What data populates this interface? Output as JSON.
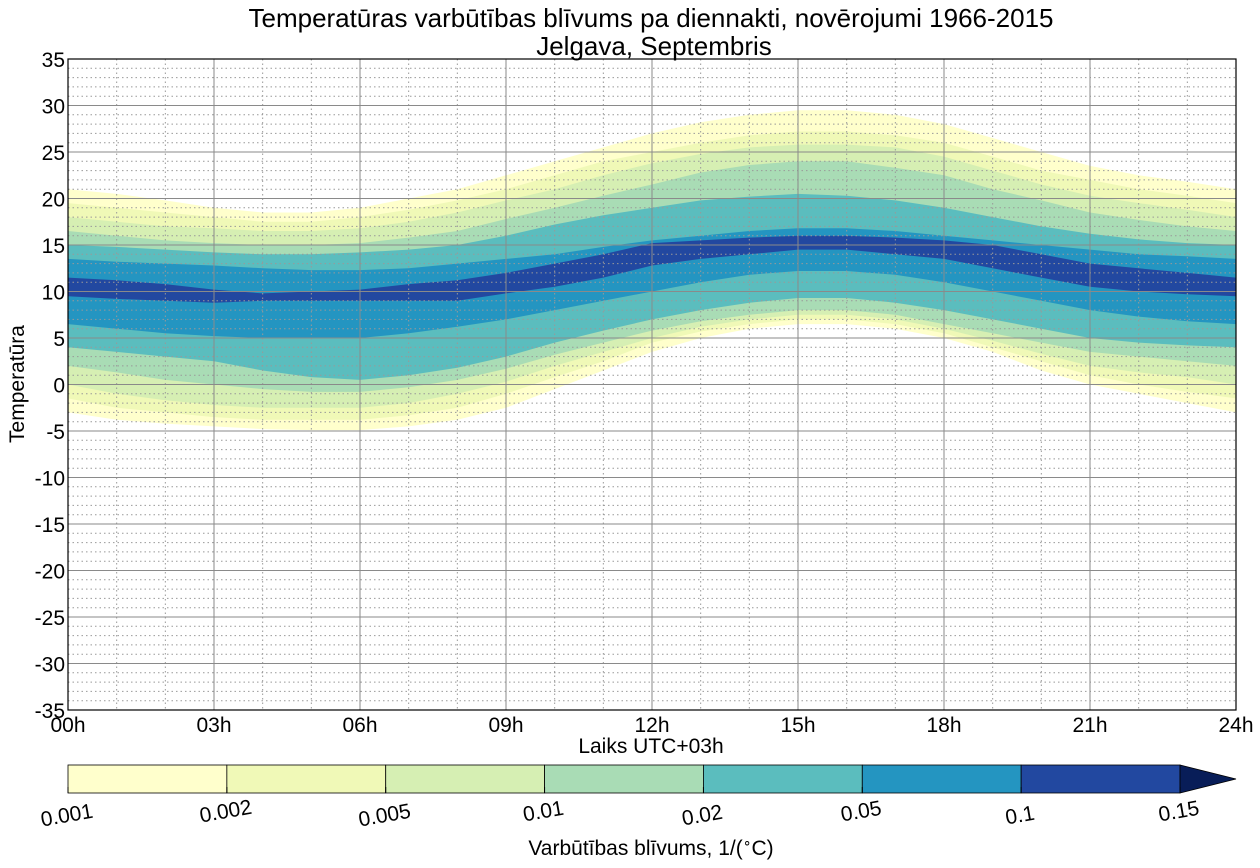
{
  "chart_data": {
    "type": "contour",
    "title": "Temperatūras varbūtības blīvums pa diennakti, novērojumi 1966-2015",
    "subtitle": "Jelgava, Septembris",
    "xlabel": "Laiks UTC+03h",
    "ylabel": "Temperatūra",
    "xlim": [
      0,
      24
    ],
    "ylim": [
      -35,
      35
    ],
    "x_ticks": [
      0,
      3,
      6,
      9,
      12,
      15,
      18,
      21,
      24
    ],
    "x_tick_labels": [
      "00h",
      "03h",
      "06h",
      "09h",
      "12h",
      "15h",
      "18h",
      "21h",
      "24h"
    ],
    "y_ticks": [
      -35,
      -30,
      -25,
      -20,
      -15,
      -10,
      -5,
      0,
      5,
      10,
      15,
      20,
      25,
      30,
      35
    ],
    "y_tick_labels": [
      "-35",
      "-30",
      "-25",
      "-20",
      "-15",
      "-10",
      "-5",
      "0",
      "5",
      "10",
      "15",
      "20",
      "25",
      "30",
      "35"
    ],
    "grid": "major solid, minor dotted",
    "colorbar": {
      "label": "Varbūtības blīvums, 1/($^\\circ$C)",
      "levels": [
        0.001,
        0.002,
        0.005,
        0.01,
        0.02,
        0.05,
        0.1,
        0.15
      ],
      "tick_labels": [
        "0.001",
        "0.002",
        "0.005",
        "0.01",
        "0.02",
        "0.05",
        "0.1",
        "0.15"
      ],
      "colors": [
        "#ffffcc",
        "#f0f9b7",
        "#d6efb3",
        "#a9dcb5",
        "#5bbdbe",
        "#2495c1",
        "#2248a0"
      ],
      "extend": "max",
      "extend_color": "#081d58"
    },
    "hours": [
      0,
      1,
      2,
      3,
      4,
      5,
      6,
      7,
      8,
      9,
      10,
      11,
      12,
      13,
      14,
      15,
      16,
      17,
      18,
      19,
      20,
      21,
      22,
      23,
      24
    ],
    "bands": [
      {
        "range": "0.001-0.002",
        "lower": [
          -3.0,
          -3.8,
          -4.2,
          -4.5,
          -4.8,
          -4.9,
          -4.9,
          -4.5,
          -3.8,
          -2.5,
          -0.5,
          1.5,
          3.5,
          5.0,
          6.0,
          6.5,
          6.5,
          6.0,
          5.0,
          3.5,
          1.5,
          0.0,
          -1.0,
          -2.0,
          -3.0
        ],
        "upper": [
          21.0,
          20.5,
          19.8,
          19.0,
          18.5,
          18.5,
          19.0,
          20.0,
          21.0,
          22.5,
          24.0,
          25.5,
          27.0,
          28.2,
          29.0,
          29.5,
          29.5,
          29.0,
          28.0,
          26.5,
          25.0,
          23.5,
          22.5,
          21.8,
          21.0
        ]
      },
      {
        "range": "0.002-0.005",
        "lower": [
          -1.5,
          -2.5,
          -3.0,
          -3.5,
          -3.8,
          -3.8,
          -3.8,
          -3.3,
          -2.5,
          -1.0,
          0.8,
          2.5,
          4.5,
          5.7,
          6.5,
          7.0,
          7.0,
          6.5,
          5.5,
          4.0,
          2.5,
          1.0,
          0.0,
          -0.8,
          -1.5
        ],
        "upper": [
          19.5,
          19.0,
          18.5,
          18.0,
          17.5,
          17.5,
          18.0,
          18.8,
          19.8,
          21.0,
          22.5,
          24.0,
          25.0,
          26.0,
          26.8,
          27.2,
          27.2,
          26.8,
          26.0,
          24.5,
          23.0,
          22.0,
          21.0,
          20.3,
          19.5
        ]
      },
      {
        "range": "0.005-0.01",
        "lower": [
          0.0,
          -1.0,
          -1.7,
          -2.2,
          -2.5,
          -2.5,
          -2.5,
          -2.0,
          -1.0,
          0.3,
          2.0,
          3.5,
          5.0,
          6.2,
          7.0,
          7.5,
          7.5,
          7.0,
          6.0,
          4.7,
          3.3,
          2.0,
          1.3,
          0.8,
          0.0
        ],
        "upper": [
          18.0,
          17.5,
          17.0,
          16.8,
          16.5,
          16.5,
          16.8,
          17.5,
          18.5,
          19.8,
          21.0,
          22.5,
          23.8,
          24.8,
          25.5,
          25.8,
          25.8,
          25.5,
          24.5,
          23.0,
          21.5,
          20.3,
          19.5,
          18.8,
          18.0
        ]
      },
      {
        "range": "0.01-0.02",
        "lower": [
          2.0,
          1.3,
          0.5,
          0.0,
          -0.5,
          -0.8,
          -0.8,
          -0.3,
          0.5,
          1.7,
          3.2,
          4.5,
          5.8,
          6.8,
          7.5,
          8.0,
          8.0,
          7.5,
          6.5,
          5.5,
          4.5,
          3.5,
          3.0,
          2.5,
          2.0
        ],
        "upper": [
          16.5,
          16.0,
          15.5,
          15.2,
          15.0,
          15.0,
          15.2,
          15.8,
          16.5,
          17.8,
          19.0,
          20.3,
          21.5,
          22.8,
          23.6,
          24.0,
          24.0,
          23.3,
          22.5,
          21.0,
          19.8,
          18.5,
          17.7,
          17.0,
          16.5
        ]
      },
      {
        "range": "0.02-0.05",
        "lower": [
          4.0,
          3.5,
          3.0,
          2.5,
          1.5,
          0.8,
          0.5,
          1.0,
          1.8,
          3.0,
          4.5,
          5.8,
          7.0,
          8.0,
          8.8,
          9.3,
          9.3,
          8.8,
          8.0,
          7.0,
          6.0,
          5.0,
          4.5,
          4.2,
          4.0
        ],
        "upper": [
          15.0,
          14.8,
          14.5,
          14.2,
          14.0,
          14.0,
          14.2,
          14.5,
          15.0,
          16.0,
          17.2,
          18.2,
          19.0,
          19.8,
          20.2,
          20.5,
          20.3,
          19.8,
          19.0,
          18.0,
          17.0,
          16.2,
          15.6,
          15.2,
          15.0
        ]
      },
      {
        "range": "0.05-0.1",
        "lower": [
          6.5,
          6.0,
          5.5,
          5.2,
          5.0,
          5.0,
          5.0,
          5.5,
          6.2,
          7.0,
          8.0,
          9.0,
          10.0,
          11.0,
          11.8,
          12.2,
          12.2,
          11.8,
          11.0,
          10.0,
          9.0,
          8.0,
          7.3,
          6.8,
          6.5
        ],
        "upper": [
          13.5,
          13.2,
          13.0,
          12.8,
          12.5,
          12.3,
          12.3,
          12.5,
          13.0,
          13.5,
          14.0,
          14.8,
          15.5,
          16.0,
          16.5,
          16.8,
          16.8,
          16.5,
          16.0,
          15.5,
          15.0,
          14.5,
          14.0,
          13.8,
          13.5
        ]
      },
      {
        "range": "0.1-0.15",
        "lower": [
          9.5,
          9.2,
          9.0,
          8.8,
          9.0,
          9.0,
          9.0,
          9.0,
          9.0,
          9.8,
          10.5,
          11.5,
          12.8,
          13.5,
          14.0,
          14.5,
          14.5,
          14.0,
          13.5,
          12.5,
          11.5,
          10.5,
          10.0,
          9.7,
          9.5
        ],
        "upper": [
          11.5,
          11.2,
          10.8,
          10.2,
          9.8,
          10.0,
          10.2,
          10.8,
          11.2,
          12.0,
          13.0,
          14.0,
          15.2,
          15.5,
          15.8,
          16.0,
          16.0,
          15.8,
          15.5,
          15.0,
          14.0,
          13.0,
          12.5,
          12.0,
          11.5
        ]
      }
    ]
  }
}
